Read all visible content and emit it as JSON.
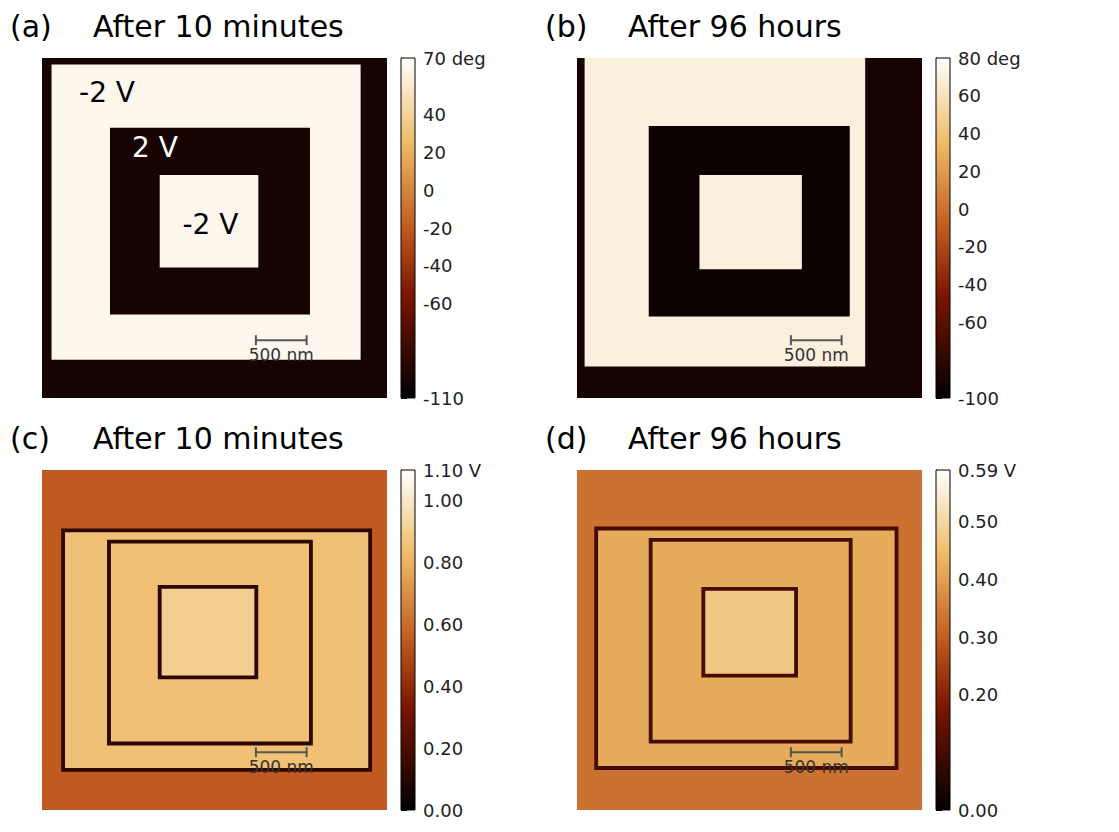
{
  "chart_data": [
    {
      "type": "heatmap",
      "label": "(a)",
      "title": "After 10 minutes",
      "xlim": [
        0,
        3400
      ],
      "ylim": [
        0,
        3400
      ],
      "tick_labels": false,
      "regions": [
        {
          "x": [
            0,
            3400
          ],
          "y": [
            0,
            3400
          ],
          "value": -100
        },
        {
          "x": [
            94,
            3140
          ],
          "y": [
            66,
            3018
          ],
          "value": 65
        },
        {
          "x": [
            670,
            2641
          ],
          "y": [
            698,
            2566
          ],
          "value": -100
        },
        {
          "x": [
            1160,
            2132
          ],
          "y": [
            1170,
            2094
          ],
          "value": 65
        }
      ],
      "annotations": [
        {
          "text": "-2 V",
          "x": 641,
          "y": 349
        },
        {
          "text": "2 V",
          "x": 1113,
          "y": 896
        },
        {
          "text": "-2 V",
          "x": 1660,
          "y": 1669
        }
      ],
      "scale_bar": {
        "length": 500,
        "label": "500 nm"
      },
      "colorbar": {
        "range": [
          -110,
          70
        ],
        "ticks": [
          {
            "value": 70,
            "label": "70 deg"
          },
          40,
          20,
          0,
          -20,
          -40,
          -60,
          -110
        ]
      }
    },
    {
      "type": "heatmap",
      "label": "(b)",
      "title": "After 96 hours",
      "xlim": [
        0,
        3400
      ],
      "ylim": [
        0,
        3400
      ],
      "tick_labels": false,
      "regions": [
        {
          "x": [
            0,
            3400
          ],
          "y": [
            0,
            3400
          ],
          "value": -90
        },
        {
          "x": [
            75,
            2840
          ],
          "y": [
            0,
            3084
          ],
          "value": 70
        },
        {
          "x": [
            707,
            2688
          ],
          "y": [
            679,
            2584
          ],
          "value": -95
        },
        {
          "x": [
            1207,
            2216
          ],
          "y": [
            1169,
            2112
          ],
          "value": 70
        }
      ],
      "scale_bar": {
        "length": 500,
        "label": "500 nm"
      },
      "colorbar": {
        "range": [
          -100,
          80
        ],
        "ticks": [
          {
            "value": 80,
            "label": "80 deg"
          },
          60,
          40,
          20,
          0,
          -20,
          -40,
          -60,
          -100
        ]
      }
    },
    {
      "type": "heatmap",
      "label": "(c)",
      "title": "After 10 minutes",
      "xlim": [
        0,
        3400
      ],
      "ylim": [
        0,
        3400
      ],
      "tick_labels": false,
      "regions": [
        {
          "x": [
            0,
            3400
          ],
          "y": [
            0,
            3400
          ],
          "value": 0.55
        },
        {
          "x": [
            189,
            3253
          ],
          "y": [
            585,
            3018
          ],
          "value": 0.12
        },
        {
          "x": [
            227,
            3215
          ],
          "y": [
            623,
            2980
          ],
          "value": 0.85
        },
        {
          "x": [
            641,
            2669
          ],
          "y": [
            698,
            2754
          ],
          "value": 0.12
        },
        {
          "x": [
            679,
            2631
          ],
          "y": [
            736,
            2716
          ],
          "value": 0.85
        },
        {
          "x": [
            1141,
            2131
          ],
          "y": [
            1150,
            2093
          ],
          "value": 0.12
        },
        {
          "x": [
            1179,
            2093
          ],
          "y": [
            1188,
            2055
          ],
          "value": 0.9
        }
      ],
      "scale_bar": {
        "length": 500,
        "label": "500 nm"
      },
      "colorbar": {
        "range": [
          0,
          1.1
        ],
        "ticks": [
          {
            "value": 1.1,
            "label": "1.10 V"
          },
          {
            "value": 1,
            "label": "1.00"
          },
          {
            "value": 0.8,
            "label": "0.80"
          },
          {
            "value": 0.6,
            "label": "0.60"
          },
          {
            "value": 0.4,
            "label": "0.40"
          },
          {
            "value": 0.2,
            "label": "0.20"
          },
          {
            "value": 0,
            "label": "0.00"
          }
        ]
      }
    },
    {
      "type": "heatmap",
      "label": "(d)",
      "title": "After 96 hours",
      "xlim": [
        0,
        3400
      ],
      "ylim": [
        0,
        3400
      ],
      "tick_labels": false,
      "regions": [
        {
          "x": [
            0,
            3400
          ],
          "y": [
            0,
            3400
          ],
          "value": 0.33
        },
        {
          "x": [
            170,
            3168
          ],
          "y": [
            566,
            2999
          ],
          "value": 0.1
        },
        {
          "x": [
            208,
            3130
          ],
          "y": [
            604,
            2961
          ],
          "value": 0.42
        },
        {
          "x": [
            707,
            2716
          ],
          "y": [
            679,
            2735
          ],
          "value": 0.1
        },
        {
          "x": [
            745,
            2678
          ],
          "y": [
            717,
            2697
          ],
          "value": 0.42
        },
        {
          "x": [
            1226,
            2178
          ],
          "y": [
            1169,
            2075
          ],
          "value": 0.1
        },
        {
          "x": [
            1264,
            2140
          ],
          "y": [
            1207,
            2037
          ],
          "value": 0.47
        }
      ],
      "scale_bar": {
        "length": 500,
        "label": "500 nm"
      },
      "colorbar": {
        "range": [
          0,
          0.59
        ],
        "ticks": [
          {
            "value": 0.59,
            "label": "0.59 V"
          },
          {
            "value": 0.5,
            "label": "0.50"
          },
          {
            "value": 0.4,
            "label": "0.40"
          },
          {
            "value": 0.3,
            "label": "0.30"
          },
          {
            "value": 0.2,
            "label": "0.20"
          },
          {
            "value": 0,
            "label": "0.00"
          }
        ]
      }
    }
  ]
}
